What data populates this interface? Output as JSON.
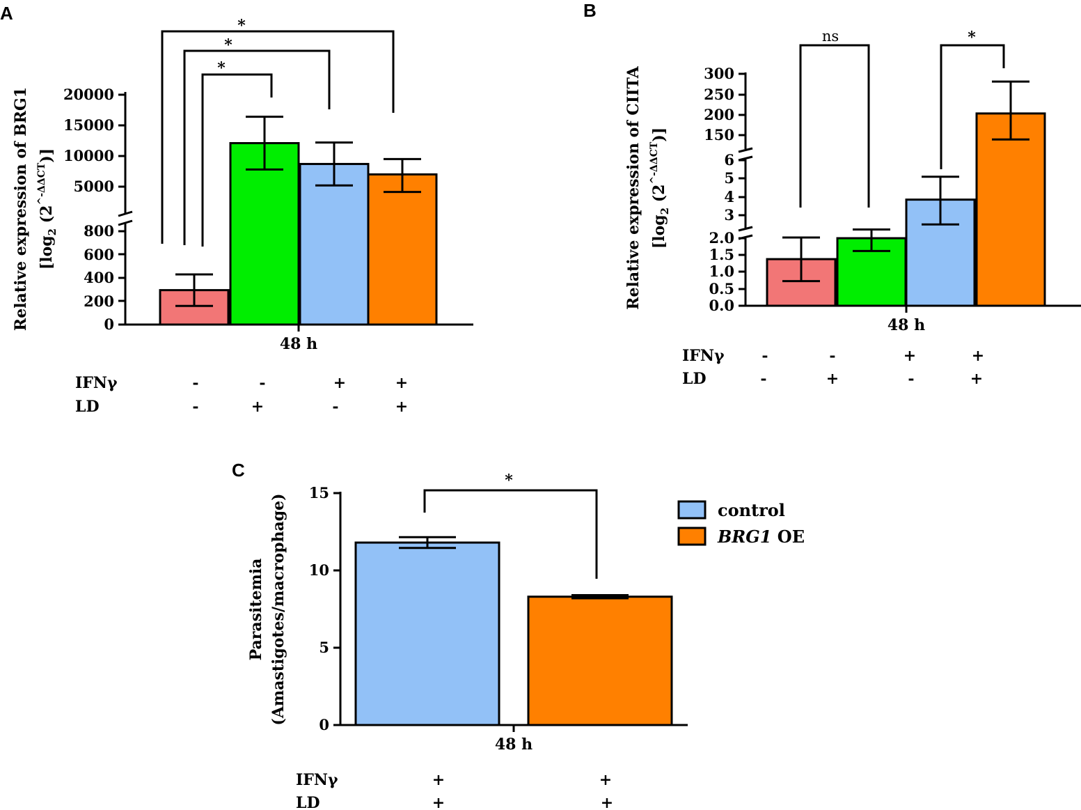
{
  "colors": {
    "red": "#f27676",
    "green": "#00ee00",
    "blue": "#92c1f7",
    "orange": "#ff8000",
    "axis": "#000000"
  },
  "labels": {
    "sup_ddct": "^-ΔΔCT",
    "ns": "ns"
  },
  "chart_data": [
    {
      "panel": "A",
      "type": "bar",
      "broken_axis": true,
      "ylabel": "Relative expression of BRG1",
      "ylabel2": "[log2 (2^-ΔΔCT)]",
      "xlabel": "48 h",
      "categories": [
        "-IFNγ/-LD",
        "-IFNγ/+LD",
        "+IFNγ/-LD",
        "+IFNγ/+LD"
      ],
      "values": [
        295,
        12100,
        8700,
        7000
      ],
      "errors": [
        135,
        4300,
        3500,
        2500
      ],
      "colors": [
        "#f27676",
        "#00ee00",
        "#92c1f7",
        "#ff8000"
      ],
      "y_low_ticks": [
        "0",
        "200",
        "400",
        "600",
        "800"
      ],
      "y_high_ticks": [
        "5000",
        "10000",
        "15000",
        "20000"
      ],
      "treatments": [
        {
          "name": "IFNγ",
          "values": [
            "-",
            "-",
            "+",
            "+"
          ]
        },
        {
          "name": "LD",
          "values": [
            "-",
            "+",
            "-",
            "+"
          ]
        }
      ],
      "significance": [
        {
          "from": 0,
          "to": 1,
          "label": "*"
        },
        {
          "from": 0,
          "to": 2,
          "label": "*"
        },
        {
          "from": 0,
          "to": 3,
          "label": "*"
        }
      ]
    },
    {
      "panel": "B",
      "type": "bar",
      "broken_axis": true,
      "ylabel": "Relative expression of CIITA",
      "ylabel2": "[log2 (2^-ΔΔCT)]",
      "xlabel": "48 h",
      "categories": [
        "-IFNγ/-LD",
        "-IFNγ/+LD",
        "+IFNγ/-LD",
        "+IFNγ/+LD"
      ],
      "values": [
        1.38,
        2.0,
        3.85,
        203
      ],
      "errors": [
        0.65,
        0.38,
        1.25,
        78
      ],
      "colors": [
        "#f27676",
        "#00ee00",
        "#92c1f7",
        "#ff8000"
      ],
      "y_low_ticks": [
        "0.0",
        "0.5",
        "1.0",
        "1.5",
        "2.0"
      ],
      "y_mid_ticks": [
        "3",
        "4",
        "5",
        "6"
      ],
      "y_high_ticks": [
        "150",
        "200",
        "250",
        "300"
      ],
      "treatments": [
        {
          "name": "IFNγ",
          "values": [
            "-",
            "-",
            "+",
            "+"
          ]
        },
        {
          "name": "LD",
          "values": [
            "-",
            "+",
            "-",
            "+"
          ]
        }
      ],
      "significance": [
        {
          "from": 0,
          "to": 1,
          "label": "ns"
        },
        {
          "from": 2,
          "to": 3,
          "label": "*"
        }
      ]
    },
    {
      "panel": "C",
      "type": "bar",
      "ylabel": "Parasitemia",
      "ylabel2": "(Amastigotes/macrophage)",
      "xlabel": "48 h",
      "categories": [
        "control",
        "BRG1 OE"
      ],
      "values": [
        11.8,
        8.3
      ],
      "errors": [
        0.35,
        0.1
      ],
      "colors": [
        "#92c1f7",
        "#ff8000"
      ],
      "ylim": [
        0,
        15
      ],
      "y_ticks": [
        "0",
        "5",
        "10",
        "15"
      ],
      "legend": [
        {
          "label": "control",
          "color": "#92c1f7"
        },
        {
          "label": "BRG1",
          "suffix": " OE",
          "color": "#ff8000"
        }
      ],
      "treatments": [
        {
          "name": "IFNγ",
          "values": [
            "+",
            "+"
          ]
        },
        {
          "name": "LD",
          "values": [
            "+",
            "+"
          ]
        }
      ],
      "significance": [
        {
          "from": 0,
          "to": 1,
          "label": "*"
        }
      ]
    }
  ]
}
